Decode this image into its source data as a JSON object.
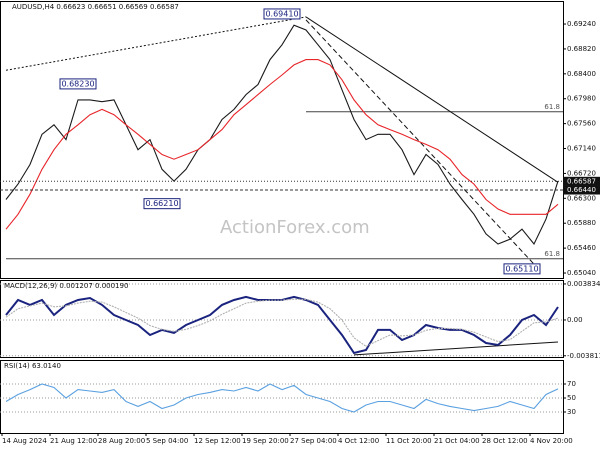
{
  "chart_data": [
    {
      "type": "line",
      "title": "AUDUSD,H4 0.66623 0.66651 0.66569 0.66587",
      "series": [
        {
          "color": "#1a1a1a",
          "values": [
            0.6628,
            0.6654,
            0.6687,
            0.6738,
            0.6754,
            0.6729,
            0.6796,
            0.6796,
            0.6793,
            0.6796,
            0.6754,
            0.6712,
            0.6729,
            0.6679,
            0.6659,
            0.6679,
            0.6712,
            0.6729,
            0.6763,
            0.678,
            0.6805,
            0.6822,
            0.6864,
            0.6889,
            0.6922,
            0.6914,
            0.6889,
            0.6864,
            0.6813,
            0.6763,
            0.6729,
            0.6738,
            0.6738,
            0.6712,
            0.667,
            0.6704,
            0.6687,
            0.6654,
            0.6628,
            0.6603,
            0.657,
            0.6553,
            0.6561,
            0.6578,
            0.6553,
            0.6595,
            0.6659
          ]
        },
        {
          "color": "#e8252a",
          "values": [
            0.6578,
            0.6603,
            0.6637,
            0.6679,
            0.6712,
            0.6738,
            0.6754,
            0.6771,
            0.678,
            0.6771,
            0.6754,
            0.6738,
            0.6721,
            0.6704,
            0.6696,
            0.6704,
            0.6712,
            0.6729,
            0.6746,
            0.6771,
            0.6788,
            0.6805,
            0.6822,
            0.6838,
            0.6855,
            0.6864,
            0.6864,
            0.6855,
            0.683,
            0.6796,
            0.6771,
            0.6754,
            0.6746,
            0.6738,
            0.6729,
            0.6721,
            0.6712,
            0.6696,
            0.667,
            0.6654,
            0.6628,
            0.6612,
            0.6603,
            0.6603,
            0.6603,
            0.6603,
            0.662
          ]
        }
      ],
      "ylim": [
        0.64956,
        0.69443
      ],
      "yticks": [
        {
          "value": 0.6924,
          "label": "0.69240"
        },
        {
          "value": 0.6882,
          "label": "0.68820"
        },
        {
          "value": 0.684,
          "label": "0.68400"
        },
        {
          "value": 0.6798,
          "label": "0.67980"
        },
        {
          "value": 0.6756,
          "label": "0.67560"
        },
        {
          "value": 0.6714,
          "label": "0.67140"
        },
        {
          "value": 0.6672,
          "label": "0.66720"
        },
        {
          "value": 0.663,
          "label": "0.66300"
        },
        {
          "value": 0.6588,
          "label": "0.65880"
        },
        {
          "value": 0.6546,
          "label": "0.65460"
        },
        {
          "value": 0.6504,
          "label": "0.65040"
        }
      ],
      "grid": false,
      "price_markers": [
        {
          "value": 0.66587,
          "label": "0.66587"
        },
        {
          "value": 0.6644,
          "label": "0.66440"
        }
      ],
      "levels": [
        {
          "label": "61.8",
          "value": 0.6776,
          "x": 25
        },
        {
          "label": "61.8",
          "value": 0.6528,
          "x": 0
        }
      ],
      "trendlines": [
        {
          "x": [
            0,
            25
          ],
          "y": [
            0.6846,
            0.6936
          ],
          "style": "dotted"
        },
        {
          "x": [
            25,
            46
          ],
          "y": [
            0.6936,
            0.6657
          ],
          "style": "solid"
        },
        {
          "x": [
            25,
            44
          ],
          "y": [
            0.6931,
            0.6519
          ],
          "style": "dashed"
        }
      ],
      "annotations": [
        {
          "label": "0.69410",
          "value": 0.6941,
          "x": 23
        },
        {
          "label": "0.68230",
          "value": 0.6823,
          "x": 6
        },
        {
          "label": "0.66210",
          "value": 0.6621,
          "x": 13
        },
        {
          "label": "0.65110",
          "value": 0.6511,
          "x": 43
        }
      ],
      "watermark": "ActionForex.com"
    },
    {
      "type": "line",
      "title": "MACD(12,26,9) 0.001207 0.000190",
      "series": [
        {
          "color": "#1a237e",
          "values": [
            0.00053,
            0.00213,
            0.0016,
            0.00213,
            0.00053,
            0.0016,
            0.00213,
            0.00234,
            0.0016,
            0.00053,
            0,
            -0.00053,
            -0.0016,
            -0.00106,
            -0.00138,
            -0.00053,
            0,
            0.00053,
            0.0016,
            0.00213,
            0.00245,
            0.00213,
            0.00213,
            0.00213,
            0.00245,
            0.00213,
            0.0016,
            0,
            -0.0016,
            -0.00351,
            -0.00319,
            -0.00106,
            -0.00106,
            -0.00213,
            -0.0016,
            -0.00053,
            -0.00085,
            -0.00106,
            -0.00106,
            -0.0016,
            -0.00245,
            -0.00266,
            -0.0016,
            0,
            0.00053,
            -0.00053,
            0.00138
          ]
        },
        {
          "color": "#b0b0b0",
          "values": [
            0.0003,
            0.0012,
            0.0015,
            0.0018,
            0.0014,
            0.0015,
            0.0018,
            0.002,
            0.0019,
            0.0014,
            0.0008,
            0.0002,
            -0.0006,
            -0.001,
            -0.0012,
            -0.001,
            -0.0006,
            -0.0001,
            0.0006,
            0.0012,
            0.0018,
            0.002,
            0.0021,
            0.0021,
            0.0022,
            0.0022,
            0.0019,
            0.0012,
            0.0,
            -0.0019,
            -0.0028,
            -0.0022,
            -0.0016,
            -0.0017,
            -0.0016,
            -0.0011,
            -0.0009,
            -0.0009,
            -0.001,
            -0.0013,
            -0.0018,
            -0.0023,
            -0.0021,
            -0.0012,
            -0.0003,
            -0.0002,
            0.0002
          ]
        }
      ],
      "ylim": [
        -0.00394,
        0.00436
      ],
      "yticks": [
        0.003834,
        {
          "value": 0,
          "label": "0.00"
        },
        -0.003811
      ],
      "grid": true,
      "trendlines": [
        {
          "x": [
            29,
            46
          ],
          "y": [
            -0.00372,
            -0.00234
          ],
          "style": "solid"
        }
      ]
    },
    {
      "type": "line",
      "title": "RSI(14) 63.0140",
      "categories": [
        null,
        "14 Aug 2024",
        null,
        null,
        null,
        "21 Aug 12:00",
        null,
        null,
        null,
        "28 Aug 20:00",
        null,
        null,
        null,
        "5 Sep 04:00",
        null,
        null,
        null,
        "12 Sep 12:00",
        null,
        null,
        null,
        "19 Sep 20:00",
        null,
        null,
        null,
        "27 Sep 04:00",
        null,
        null,
        null,
        "4 Oct 12:00",
        null,
        null,
        null,
        "11 Oct 20:00",
        null,
        null,
        null,
        "21 Oct 04:00",
        null,
        null,
        null,
        "28 Oct 12:00",
        null,
        null,
        null,
        "4 Nov 20:00",
        null
      ],
      "series": [
        {
          "color": "#5aa0e0",
          "values": [
            45,
            55,
            62,
            70,
            65,
            50,
            62,
            60,
            58,
            62,
            45,
            38,
            45,
            35,
            40,
            50,
            55,
            58,
            62,
            60,
            65,
            60,
            70,
            62,
            68,
            55,
            50,
            45,
            35,
            30,
            40,
            45,
            45,
            40,
            35,
            48,
            42,
            38,
            35,
            32,
            35,
            38,
            45,
            40,
            35,
            55,
            63
          ]
        }
      ],
      "ylim": [
        0,
        100
      ],
      "yticks": [
        70,
        50,
        30
      ],
      "grid": true
    }
  ]
}
